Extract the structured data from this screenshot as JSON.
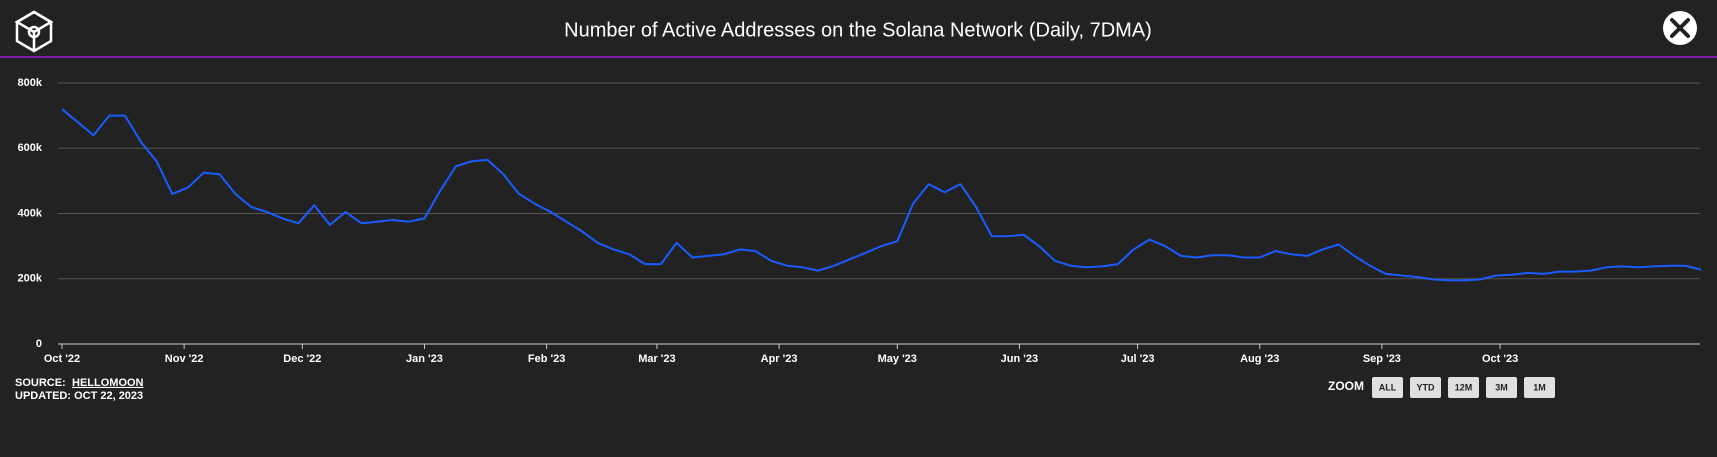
{
  "chart_data": {
    "type": "line",
    "title": "Number of Active Addresses on the Solana Network (Daily, 7DMA)",
    "x": [
      0,
      4,
      8,
      12,
      16,
      20,
      24,
      28,
      32,
      36,
      40,
      44,
      48,
      52,
      56,
      60,
      64,
      68,
      72,
      76,
      80,
      84,
      88,
      92,
      96,
      100,
      104,
      108,
      112,
      116,
      120,
      124,
      128,
      132,
      136,
      140,
      144,
      148,
      152,
      156,
      160,
      164,
      168,
      172,
      176,
      180,
      184,
      188,
      192,
      196,
      200,
      204,
      208,
      212,
      216,
      220,
      224,
      228,
      232,
      236,
      240,
      244,
      248,
      252,
      256,
      260,
      264,
      268,
      272,
      276,
      280,
      284,
      288,
      292,
      296,
      300,
      304,
      308,
      312,
      316,
      320,
      324,
      328,
      332,
      336,
      340,
      344,
      348,
      352,
      356,
      360,
      364,
      368,
      372,
      376,
      380,
      384,
      388,
      392,
      396,
      400,
      404,
      408,
      412,
      416
    ],
    "series": [
      {
        "name": "Active Addresses",
        "color": "#1a5cff",
        "values": [
          720000,
          680000,
          640000,
          700000,
          700000,
          620000,
          560000,
          460000,
          480000,
          525000,
          520000,
          460000,
          420000,
          405000,
          385000,
          370000,
          425000,
          365000,
          405000,
          370000,
          375000,
          380000,
          375000,
          385000,
          470000,
          545000,
          560000,
          565000,
          520000,
          460000,
          430000,
          405000,
          375000,
          345000,
          310000,
          290000,
          275000,
          245000,
          245000,
          310000,
          265000,
          270000,
          275000,
          290000,
          285000,
          255000,
          240000,
          235000,
          225000,
          240000,
          260000,
          280000,
          300000,
          315000,
          430000,
          490000,
          465000,
          490000,
          420000,
          330000,
          330000,
          335000,
          300000,
          255000,
          240000,
          235000,
          238000,
          245000,
          290000,
          320000,
          300000,
          270000,
          265000,
          272000,
          272000,
          265000,
          265000,
          285000,
          275000,
          270000,
          290000,
          305000,
          270000,
          240000,
          215000,
          210000,
          205000,
          198000,
          195000,
          195000,
          198000,
          210000,
          212000,
          218000,
          215000,
          222000,
          222000,
          225000,
          235000,
          238000,
          235000,
          238000,
          240000,
          240000,
          228000
        ]
      }
    ],
    "xlim": [
      0,
      416.5
    ],
    "xticks": [
      {
        "value": 0,
        "label": "Oct '22"
      },
      {
        "value": 31,
        "label": "Nov '22"
      },
      {
        "value": 61,
        "label": "Dec '22"
      },
      {
        "value": 92,
        "label": "Jan '23"
      },
      {
        "value": 123,
        "label": "Feb '23"
      },
      {
        "value": 151,
        "label": "Mar '23"
      },
      {
        "value": 182,
        "label": "Apr '23"
      },
      {
        "value": 212,
        "label": "May '23"
      },
      {
        "value": 243,
        "label": "Jun '23"
      },
      {
        "value": 273,
        "label": "Jul '23"
      },
      {
        "value": 304,
        "label": "Aug '23"
      },
      {
        "value": 335,
        "label": "Sep '23"
      },
      {
        "value": 365,
        "label": "Oct '23"
      }
    ],
    "ylim": [
      0,
      800000
    ],
    "yticks": [
      0,
      {
        "value": 200000,
        "label": "200k"
      },
      {
        "value": 400000,
        "label": "400k"
      },
      {
        "value": 600000,
        "label": "600k"
      },
      {
        "value": 800000,
        "label": "800k"
      }
    ],
    "grid": true
  },
  "footer": {
    "source_label": "SOURCE:",
    "source": "HELLOMOON",
    "updated": "UPDATED: OCT 22, 2023"
  },
  "zoom": {
    "label": "ZOOM",
    "buttons": [
      "ALL",
      "YTD",
      "12M",
      "3M",
      "1M"
    ]
  }
}
